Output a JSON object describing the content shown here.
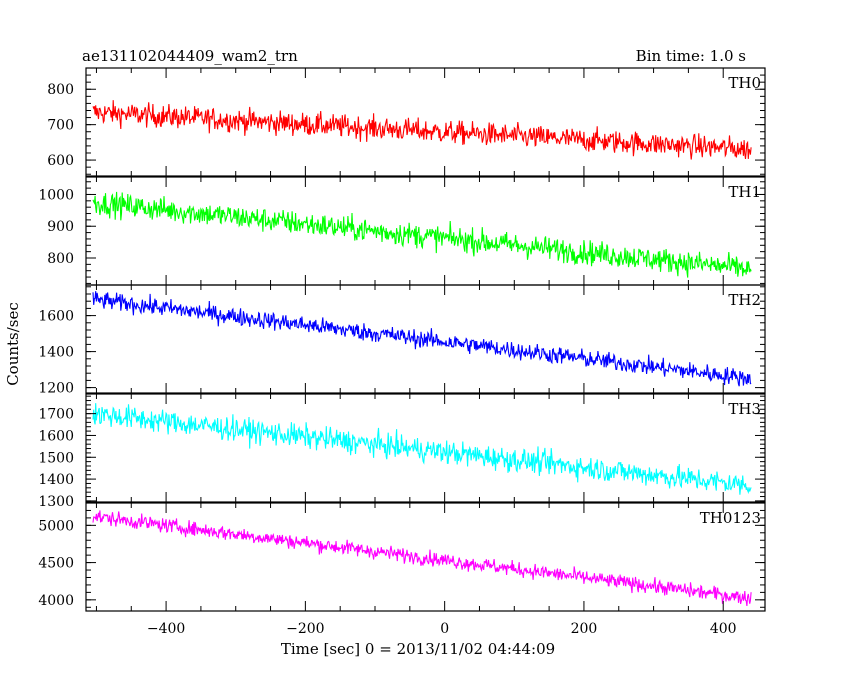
{
  "header": {
    "title": "ae131102044409_wam2_trn",
    "bin_time": "Bin time: 1.0 s"
  },
  "axes": {
    "xlabel": "Time [sec] 0 = 2013/11/02 04:44:09",
    "ylabel": "Counts/sec",
    "xlim": [
      -515,
      460
    ],
    "xticks": [
      -400,
      -200,
      0,
      200,
      400
    ],
    "xtick_labels": [
      "−400",
      "−200",
      "0",
      "200",
      "400"
    ]
  },
  "chart_data": [
    {
      "type": "line",
      "panel": "TH0",
      "name": "TH0",
      "color": "#ff0000",
      "ylim": [
        555,
        860
      ],
      "yticks": [
        600,
        700,
        800
      ],
      "x_range": [
        -505,
        440
      ],
      "trend": {
        "start": 735,
        "end": 630
      },
      "noise_amplitude": 30
    },
    {
      "type": "line",
      "panel": "TH1",
      "name": "TH1",
      "color": "#00ff00",
      "ylim": [
        715,
        1055
      ],
      "yticks": [
        800,
        900,
        1000
      ],
      "x_range": [
        -505,
        440
      ],
      "trend": {
        "start": 975,
        "end": 765
      },
      "noise_amplitude": 35
    },
    {
      "type": "line",
      "panel": "TH2",
      "name": "TH2",
      "color": "#0000ff",
      "ylim": [
        1170,
        1770
      ],
      "yticks": [
        1200,
        1400,
        1600
      ],
      "x_range": [
        -505,
        440
      ],
      "trend": {
        "start": 1690,
        "end": 1250
      },
      "noise_amplitude": 45
    },
    {
      "type": "line",
      "panel": "TH3",
      "name": "TH3",
      "color": "#00ffff",
      "ylim": [
        1295,
        1790
      ],
      "yticks": [
        1300,
        1400,
        1500,
        1600,
        1700
      ],
      "x_range": [
        -505,
        440
      ],
      "trend": {
        "start": 1700,
        "end": 1370
      },
      "noise_amplitude": 50
    },
    {
      "type": "line",
      "panel": "TH0123",
      "name": "TH0123",
      "color": "#ff00ff",
      "ylim": [
        3850,
        5300
      ],
      "yticks": [
        4000,
        4500,
        5000
      ],
      "x_range": [
        -505,
        440
      ],
      "trend": {
        "start": 5120,
        "end": 4020
      },
      "noise_amplitude": 90
    }
  ]
}
